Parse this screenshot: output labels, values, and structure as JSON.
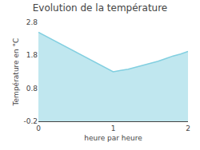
{
  "chart_data": {
    "type": "area",
    "title": "Evolution de la température",
    "xlabel": "heure par heure",
    "ylabel": "Température en °C",
    "x": [
      0,
      0.1,
      0.2,
      0.3,
      0.4,
      0.5,
      0.6,
      0.7,
      0.8,
      0.9,
      1.0,
      1.1,
      1.2,
      1.3,
      1.4,
      1.5,
      1.6,
      1.7,
      1.8,
      1.9,
      2.0
    ],
    "values": [
      2.5,
      2.38,
      2.26,
      2.14,
      2.02,
      1.9,
      1.78,
      1.66,
      1.54,
      1.42,
      1.3,
      1.34,
      1.38,
      1.44,
      1.5,
      1.56,
      1.62,
      1.7,
      1.78,
      1.84,
      1.92
    ],
    "color": "#82cfe0",
    "xlim": [
      0,
      2
    ],
    "ylim": [
      -0.2,
      2.8
    ],
    "xticks": [
      0,
      1,
      2
    ],
    "yticks": [
      -0.2,
      0.8,
      1.8,
      2.8
    ],
    "grid": false
  }
}
